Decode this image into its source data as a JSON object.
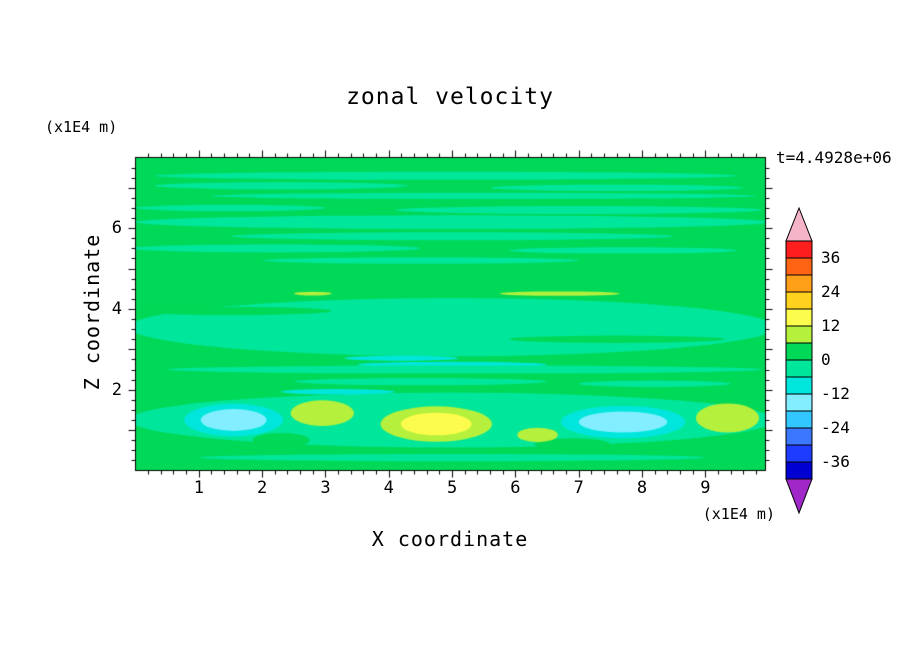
{
  "chart_data": {
    "type": "heatmap",
    "title": "zonal velocity",
    "time_annotation": "t=4.4928e+06",
    "xlabel": "X coordinate",
    "ylabel": "Z coordinate",
    "x_unit": "(x1E4 m)",
    "y_unit": "(x1E4 m)",
    "xlim": [
      0,
      9.95
    ],
    "ylim": [
      0,
      7.75
    ],
    "x_axis": {
      "majors": [
        1,
        2,
        3,
        4,
        5,
        6,
        7,
        8,
        9
      ],
      "labeled": [
        1,
        2,
        3,
        4,
        5,
        6,
        7,
        8,
        9
      ],
      "minor_step": 0.2
    },
    "y_axis": {
      "majors": [
        1,
        2,
        3,
        4,
        5,
        6,
        7
      ],
      "labeled": [
        2,
        4,
        6
      ],
      "minor_step": 0.25
    },
    "colorbar": {
      "levels": [
        -42,
        -36,
        -30,
        -24,
        -18,
        -12,
        -6,
        0,
        6,
        12,
        18,
        24,
        30,
        36,
        42
      ],
      "band_colors": [
        "#0000D2",
        "#1E3CFF",
        "#3C78FF",
        "#32C8FF",
        "#82EEFF",
        "#00E6DC",
        "#00E69B",
        "#00D857",
        "#B4F03C",
        "#FCFC4C",
        "#FFD21E",
        "#FFA018",
        "#FF6414",
        "#FF1E1E"
      ],
      "under_color": "#A028C8",
      "over_color": "#F5B4C8",
      "labels": [
        "36",
        "24",
        "12",
        "0",
        "-12",
        "-24",
        "-36"
      ]
    },
    "field": {
      "background_value": 2,
      "features": [
        {
          "x": 4.9,
          "y": 7.3,
          "rx": 4.6,
          "ry": 0.1,
          "v": -2
        },
        {
          "x": 2.3,
          "y": 7.05,
          "rx": 2.0,
          "ry": 0.09,
          "v": -2
        },
        {
          "x": 7.6,
          "y": 7.0,
          "rx": 2.0,
          "ry": 0.08,
          "v": -2
        },
        {
          "x": 5.5,
          "y": 6.8,
          "rx": 4.3,
          "ry": 0.08,
          "v": -2
        },
        {
          "x": 1.5,
          "y": 6.5,
          "rx": 1.5,
          "ry": 0.08,
          "v": -2
        },
        {
          "x": 7.0,
          "y": 6.45,
          "rx": 2.9,
          "ry": 0.1,
          "v": -2
        },
        {
          "x": 5.0,
          "y": 6.15,
          "rx": 5.0,
          "ry": 0.17,
          "v": -2
        },
        {
          "x": 5.0,
          "y": 5.8,
          "rx": 3.5,
          "ry": 0.1,
          "v": -2
        },
        {
          "x": 2.2,
          "y": 5.5,
          "rx": 2.3,
          "ry": 0.1,
          "v": -2
        },
        {
          "x": 7.7,
          "y": 5.45,
          "rx": 1.8,
          "ry": 0.08,
          "v": -2
        },
        {
          "x": 4.5,
          "y": 5.2,
          "rx": 2.5,
          "ry": 0.08,
          "v": -2
        },
        {
          "x": 5.0,
          "y": 3.55,
          "rx": 5.1,
          "ry": 0.72,
          "v": -2
        },
        {
          "x": 1.5,
          "y": 3.95,
          "rx": 1.6,
          "ry": 0.1,
          "v": 2
        },
        {
          "x": 7.6,
          "y": 3.25,
          "rx": 1.7,
          "ry": 0.09,
          "v": 2
        },
        {
          "x": 6.7,
          "y": 4.38,
          "rx": 0.95,
          "ry": 0.055,
          "v": 8
        },
        {
          "x": 2.8,
          "y": 4.38,
          "rx": 0.3,
          "ry": 0.045,
          "v": 8
        },
        {
          "x": 5.0,
          "y": 2.62,
          "rx": 1.5,
          "ry": 0.07,
          "v": -8
        },
        {
          "x": 4.2,
          "y": 2.78,
          "rx": 0.9,
          "ry": 0.06,
          "v": -8
        },
        {
          "x": 5.2,
          "y": 2.5,
          "rx": 4.7,
          "ry": 0.1,
          "v": -2
        },
        {
          "x": 4.5,
          "y": 2.2,
          "rx": 2.0,
          "ry": 0.09,
          "v": -2
        },
        {
          "x": 8.2,
          "y": 2.15,
          "rx": 1.2,
          "ry": 0.08,
          "v": -2
        },
        {
          "x": 5.0,
          "y": 1.25,
          "rx": 5.1,
          "ry": 0.68,
          "v": -2
        },
        {
          "x": 3.2,
          "y": 1.95,
          "rx": 0.9,
          "ry": 0.07,
          "v": -8
        },
        {
          "x": 2.3,
          "y": 0.75,
          "rx": 0.45,
          "ry": 0.18,
          "v": 2
        },
        {
          "x": 6.9,
          "y": 0.65,
          "rx": 0.6,
          "ry": 0.15,
          "v": 2
        },
        {
          "x": 1.55,
          "y": 1.25,
          "rx": 0.78,
          "ry": 0.4,
          "v": -8
        },
        {
          "x": 1.55,
          "y": 1.25,
          "rx": 0.52,
          "ry": 0.27,
          "v": -14
        },
        {
          "x": 2.95,
          "y": 1.42,
          "rx": 0.5,
          "ry": 0.32,
          "v": 8
        },
        {
          "x": 4.75,
          "y": 1.15,
          "rx": 0.88,
          "ry": 0.44,
          "v": 8
        },
        {
          "x": 4.75,
          "y": 1.15,
          "rx": 0.56,
          "ry": 0.28,
          "v": 14
        },
        {
          "x": 7.7,
          "y": 1.2,
          "rx": 0.98,
          "ry": 0.4,
          "v": -8
        },
        {
          "x": 7.7,
          "y": 1.2,
          "rx": 0.7,
          "ry": 0.26,
          "v": -14
        },
        {
          "x": 9.35,
          "y": 1.3,
          "rx": 0.5,
          "ry": 0.36,
          "v": 8
        },
        {
          "x": 6.35,
          "y": 0.88,
          "rx": 0.32,
          "ry": 0.18,
          "v": 8
        },
        {
          "x": 5.0,
          "y": 0.32,
          "rx": 4.0,
          "ry": 0.09,
          "v": -2
        }
      ]
    }
  }
}
